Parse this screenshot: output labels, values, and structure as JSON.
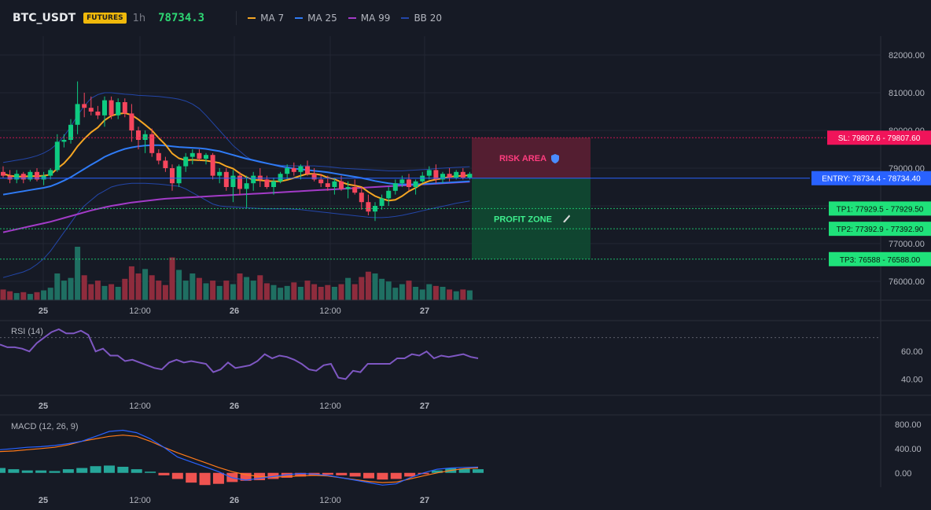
{
  "header": {
    "symbol": "BTC_USDT",
    "badge": "FUTURES",
    "timeframe": "1h",
    "price": "78734.3",
    "legend": [
      {
        "label": "MA 7",
        "color": "#f5a623"
      },
      {
        "label": "MA 25",
        "color": "#2f7bf5"
      },
      {
        "label": "MA 99",
        "color": "#a33bc8"
      },
      {
        "label": "BB 20",
        "color": "#2346a8"
      }
    ]
  },
  "zones": {
    "risk_label": "RISK AREA",
    "risk_icon": "shield-icon",
    "profit_label": "PROFIT ZONE",
    "profit_icon": "rocket-icon"
  },
  "levels": [
    {
      "name": "sl",
      "value": 79807.6,
      "text": "SL: 79807.6 - 79807.60",
      "color": "#f0145a",
      "textColor": "#ffffff"
    },
    {
      "name": "entry",
      "value": 78734.4,
      "text": "ENTRY: 78734.4 - 78734.40",
      "color": "#2962ff",
      "textColor": "#ffffff"
    },
    {
      "name": "tp1",
      "value": 77929.5,
      "text": "TP1: 77929.5 - 77929.50",
      "color": "#1fe27a",
      "textColor": "#0b1a10"
    },
    {
      "name": "tp2",
      "value": 77392.9,
      "text": "TP2: 77392.9 - 77392.90",
      "color": "#1fe27a",
      "textColor": "#0b1a10"
    },
    {
      "name": "tp3",
      "value": 76588,
      "text": "TP3: 76588 - 76588.00",
      "color": "#1fe27a",
      "textColor": "#0b1a10"
    }
  ],
  "x_labels": [
    "25",
    "12:00",
    "26",
    "12:00",
    "27"
  ],
  "panels": {
    "rsi_label": "RSI (14)",
    "macd_label": "MACD (12, 26, 9)"
  },
  "chart_data": [
    {
      "type": "candlestick",
      "title": "",
      "price_axis": [
        "82000.00",
        "81000.00",
        "80000.00",
        "79000.00",
        "78000.00",
        "77000.00",
        "76000.00"
      ],
      "ylim": [
        75500,
        82500
      ],
      "candles": [
        [
          78900,
          79050,
          78750,
          78800
        ],
        [
          78800,
          78950,
          78600,
          78700
        ],
        [
          78700,
          78950,
          78600,
          78850
        ],
        [
          78850,
          78900,
          78600,
          78700
        ],
        [
          78700,
          78950,
          78650,
          78900
        ],
        [
          78900,
          79000,
          78650,
          78700
        ],
        [
          78700,
          78900,
          78550,
          78800
        ],
        [
          78800,
          79000,
          78700,
          78950
        ],
        [
          78950,
          79900,
          78900,
          79700
        ],
        [
          79700,
          79900,
          79550,
          79750
        ],
        [
          79750,
          80300,
          79650,
          80150
        ],
        [
          80150,
          81300,
          79900,
          80700
        ],
        [
          80700,
          81000,
          80350,
          80600
        ],
        [
          80600,
          80900,
          80400,
          80500
        ],
        [
          80500,
          80650,
          80300,
          80400
        ],
        [
          80400,
          80900,
          80100,
          80800
        ],
        [
          80800,
          80900,
          80300,
          80400
        ],
        [
          80400,
          80850,
          80300,
          80750
        ],
        [
          80750,
          80850,
          80350,
          80450
        ],
        [
          80450,
          80700,
          79700,
          80000
        ],
        [
          80000,
          80100,
          79500,
          79750
        ],
        [
          79750,
          80000,
          79400,
          79900
        ],
        [
          79900,
          80050,
          79300,
          79400
        ],
        [
          79400,
          79500,
          79100,
          79200
        ],
        [
          79200,
          79300,
          78900,
          79000
        ],
        [
          79000,
          79100,
          78400,
          78600
        ],
        [
          78600,
          79100,
          78500,
          79050
        ],
        [
          79050,
          79400,
          78900,
          79300
        ],
        [
          79300,
          79500,
          79100,
          79400
        ],
        [
          79400,
          79500,
          79200,
          79250
        ],
        [
          79250,
          79400,
          79100,
          79350
        ],
        [
          79350,
          79400,
          78700,
          78800
        ],
        [
          78800,
          79000,
          78600,
          78900
        ],
        [
          78900,
          79000,
          78400,
          78500
        ],
        [
          78500,
          78950,
          78100,
          78800
        ],
        [
          78800,
          78900,
          78300,
          78450
        ],
        [
          78450,
          78800,
          77950,
          78600
        ],
        [
          78600,
          78900,
          78400,
          78800
        ],
        [
          78800,
          79000,
          78500,
          78700
        ],
        [
          78700,
          78800,
          78450,
          78500
        ],
        [
          78500,
          78750,
          78300,
          78650
        ],
        [
          78650,
          78900,
          78600,
          78850
        ],
        [
          78850,
          79100,
          78700,
          79000
        ],
        [
          79000,
          79150,
          78800,
          78900
        ],
        [
          78900,
          79100,
          78700,
          79050
        ],
        [
          79050,
          79200,
          78800,
          78850
        ],
        [
          78850,
          79000,
          78650,
          78700
        ],
        [
          78700,
          78850,
          78500,
          78600
        ],
        [
          78600,
          78800,
          78400,
          78500
        ],
        [
          78500,
          78750,
          78300,
          78650
        ],
        [
          78650,
          78800,
          78400,
          78450
        ],
        [
          78450,
          78650,
          78200,
          78500
        ],
        [
          78500,
          78700,
          78300,
          78350
        ],
        [
          78350,
          78500,
          77900,
          78100
        ],
        [
          78100,
          78300,
          77750,
          77850
        ],
        [
          77850,
          78100,
          77600,
          78000
        ],
        [
          78000,
          78300,
          77900,
          78200
        ],
        [
          78200,
          78500,
          78000,
          78400
        ],
        [
          78400,
          78700,
          78300,
          78600
        ],
        [
          78600,
          78800,
          78500,
          78700
        ],
        [
          78700,
          78850,
          78400,
          78500
        ],
        [
          78500,
          78700,
          78300,
          78650
        ],
        [
          78650,
          78900,
          78600,
          78800
        ],
        [
          78800,
          79050,
          78700,
          78950
        ],
        [
          78950,
          79100,
          78600,
          78700
        ],
        [
          78700,
          78900,
          78600,
          78850
        ],
        [
          78850,
          79000,
          78650,
          78750
        ],
        [
          78750,
          78950,
          78700,
          78900
        ],
        [
          78900,
          79000,
          78700,
          78750
        ],
        [
          78750,
          78900,
          78700,
          78850
        ]
      ],
      "ma7": [
        78850,
        78800,
        78780,
        78780,
        78790,
        78790,
        78800,
        78830,
        78990,
        79130,
        79330,
        79580,
        79780,
        79950,
        80080,
        80270,
        80390,
        80440,
        80460,
        80410,
        80290,
        80150,
        80000,
        79800,
        79620,
        79390,
        79260,
        79210,
        79220,
        79210,
        79200,
        79170,
        79140,
        79050,
        78990,
        78860,
        78760,
        78690,
        78680,
        78660,
        78650,
        78650,
        78690,
        78740,
        78800,
        78850,
        78850,
        78820,
        78750,
        78710,
        78630,
        78570,
        78540,
        78500,
        78370,
        78260,
        78190,
        78140,
        78160,
        78260,
        78390,
        78480,
        78590,
        78660,
        78700,
        78730,
        78770,
        78790,
        78800,
        78810
      ],
      "ma25": [
        78300,
        78330,
        78360,
        78390,
        78420,
        78450,
        78480,
        78520,
        78590,
        78670,
        78760,
        78870,
        78980,
        79090,
        79190,
        79300,
        79380,
        79450,
        79510,
        79550,
        79580,
        79600,
        79610,
        79610,
        79600,
        79580,
        79560,
        79550,
        79540,
        79530,
        79510,
        79480,
        79450,
        79400,
        79350,
        79300,
        79250,
        79210,
        79170,
        79130,
        79090,
        79050,
        79020,
        78990,
        78970,
        78950,
        78930,
        78910,
        78890,
        78860,
        78830,
        78800,
        78770,
        78740,
        78700,
        78660,
        78630,
        78600,
        78580,
        78570,
        78570,
        78570,
        78580,
        78590,
        78600,
        78610,
        78620,
        78630,
        78640,
        78650
      ],
      "ma99": [
        77300,
        77340,
        77380,
        77420,
        77460,
        77500,
        77540,
        77580,
        77630,
        77680,
        77730,
        77780,
        77830,
        77880,
        77920,
        77960,
        78000,
        78030,
        78060,
        78090,
        78110,
        78130,
        78150,
        78170,
        78190,
        78200,
        78210,
        78220,
        78230,
        78240,
        78250,
        78260,
        78270,
        78280,
        78290,
        78300,
        78310,
        78320,
        78330,
        78340,
        78350,
        78360,
        78370,
        78380,
        78390,
        78400,
        78410,
        78420,
        78430,
        78440,
        78450,
        78460,
        78470,
        78480,
        78490,
        78500,
        78510,
        78520,
        78530,
        78540,
        78550,
        78560,
        78570,
        78580,
        78590,
        78600,
        78610,
        78620,
        78630,
        78640
      ],
      "bb_upper": [
        79150,
        79180,
        79210,
        79240,
        79280,
        79330,
        79400,
        79500,
        79650,
        79850,
        80100,
        80400,
        80650,
        80850,
        80950,
        81000,
        81000,
        80980,
        80960,
        80950,
        80930,
        80920,
        80910,
        80900,
        80880,
        80860,
        80830,
        80780,
        80700,
        80580,
        80400,
        80200,
        80000,
        79800,
        79600,
        79450,
        79300,
        79200,
        79150,
        79120,
        79100,
        79080,
        79070,
        79060,
        79060,
        79060,
        79060,
        79050,
        79040,
        79020,
        79000,
        78990,
        78980,
        78970,
        78960,
        78950,
        78940,
        78930,
        78930,
        78930,
        78940,
        78950,
        78960,
        78970,
        78990,
        79000,
        79010,
        79020,
        79030,
        79040
      ],
      "bb_lower": [
        76100,
        76150,
        76200,
        76250,
        76330,
        76450,
        76600,
        76800,
        77050,
        77300,
        77550,
        77800,
        78000,
        78150,
        78300,
        78400,
        78500,
        78550,
        78580,
        78600,
        78600,
        78600,
        78590,
        78580,
        78560,
        78540,
        78520,
        78450,
        78350,
        78250,
        78150,
        78050,
        78000,
        77980,
        77970,
        77960,
        77950,
        77940,
        77930,
        77920,
        77920,
        77920,
        77920,
        77910,
        77900,
        77880,
        77860,
        77840,
        77820,
        77800,
        77780,
        77760,
        77740,
        77720,
        77700,
        77690,
        77690,
        77700,
        77720,
        77750,
        77790,
        77830,
        77870,
        77910,
        77950,
        77990,
        78030,
        78070,
        78100,
        78130
      ],
      "volume": [
        12,
        10,
        8,
        9,
        7,
        9,
        11,
        14,
        30,
        22,
        25,
        60,
        28,
        18,
        22,
        16,
        18,
        15,
        24,
        38,
        30,
        35,
        28,
        22,
        17,
        48,
        34,
        22,
        30,
        25,
        19,
        22,
        16,
        22,
        18,
        30,
        26,
        22,
        28,
        19,
        17,
        14,
        16,
        20,
        15,
        22,
        18,
        15,
        17,
        15,
        18,
        25,
        18,
        26,
        32,
        30,
        24,
        21,
        14,
        18,
        22,
        15,
        12,
        18,
        16,
        15,
        12,
        10,
        12,
        11
      ]
    },
    {
      "type": "line",
      "title": "RSI (14)",
      "y_ticks": [
        "60.00",
        "40.00"
      ],
      "ylim": [
        30,
        80
      ],
      "values": [
        65,
        63,
        63,
        62,
        60,
        66,
        70,
        74,
        76,
        73,
        73,
        75,
        72,
        60,
        62,
        57,
        57,
        53,
        54,
        52,
        50,
        48,
        47,
        52,
        54,
        52,
        53,
        52,
        51,
        45,
        47,
        52,
        48,
        49,
        50,
        53,
        58,
        55,
        57,
        56,
        54,
        51,
        47,
        46,
        50,
        51,
        41,
        40,
        46,
        45,
        51,
        51,
        51,
        51,
        55,
        55,
        58,
        57,
        60,
        55,
        57,
        56,
        57,
        58,
        56,
        55
      ]
    },
    {
      "type": "macd",
      "title": "MACD (12, 26, 9)",
      "y_ticks": [
        "800.00",
        "400.00",
        "0.00"
      ],
      "ylim": [
        -300,
        900
      ],
      "macd": [
        380,
        400,
        420,
        430,
        450,
        480,
        520,
        600,
        680,
        700,
        660,
        560,
        420,
        260,
        180,
        100,
        20,
        -80,
        -120,
        -90,
        -60,
        -30,
        -10,
        -20,
        -40,
        -80,
        -120,
        -160,
        -200,
        -180,
        -80,
        0,
        60,
        80,
        90,
        95
      ],
      "signal": [
        350,
        360,
        380,
        400,
        420,
        460,
        520,
        560,
        600,
        620,
        600,
        520,
        420,
        330,
        250,
        170,
        90,
        20,
        -30,
        -60,
        -70,
        -60,
        -50,
        -40,
        -50,
        -80,
        -110,
        -140,
        -160,
        -150,
        -100,
        -50,
        0,
        40,
        70,
        80
      ],
      "hist": [
        80,
        60,
        40,
        40,
        30,
        60,
        80,
        110,
        120,
        100,
        60,
        20,
        -40,
        -100,
        -160,
        -200,
        -180,
        -150,
        -130,
        -120,
        -100,
        -80,
        -60,
        -40,
        -30,
        -40,
        -60,
        -90,
        -110,
        -100,
        -60,
        -20,
        40,
        80,
        70,
        60
      ]
    }
  ]
}
